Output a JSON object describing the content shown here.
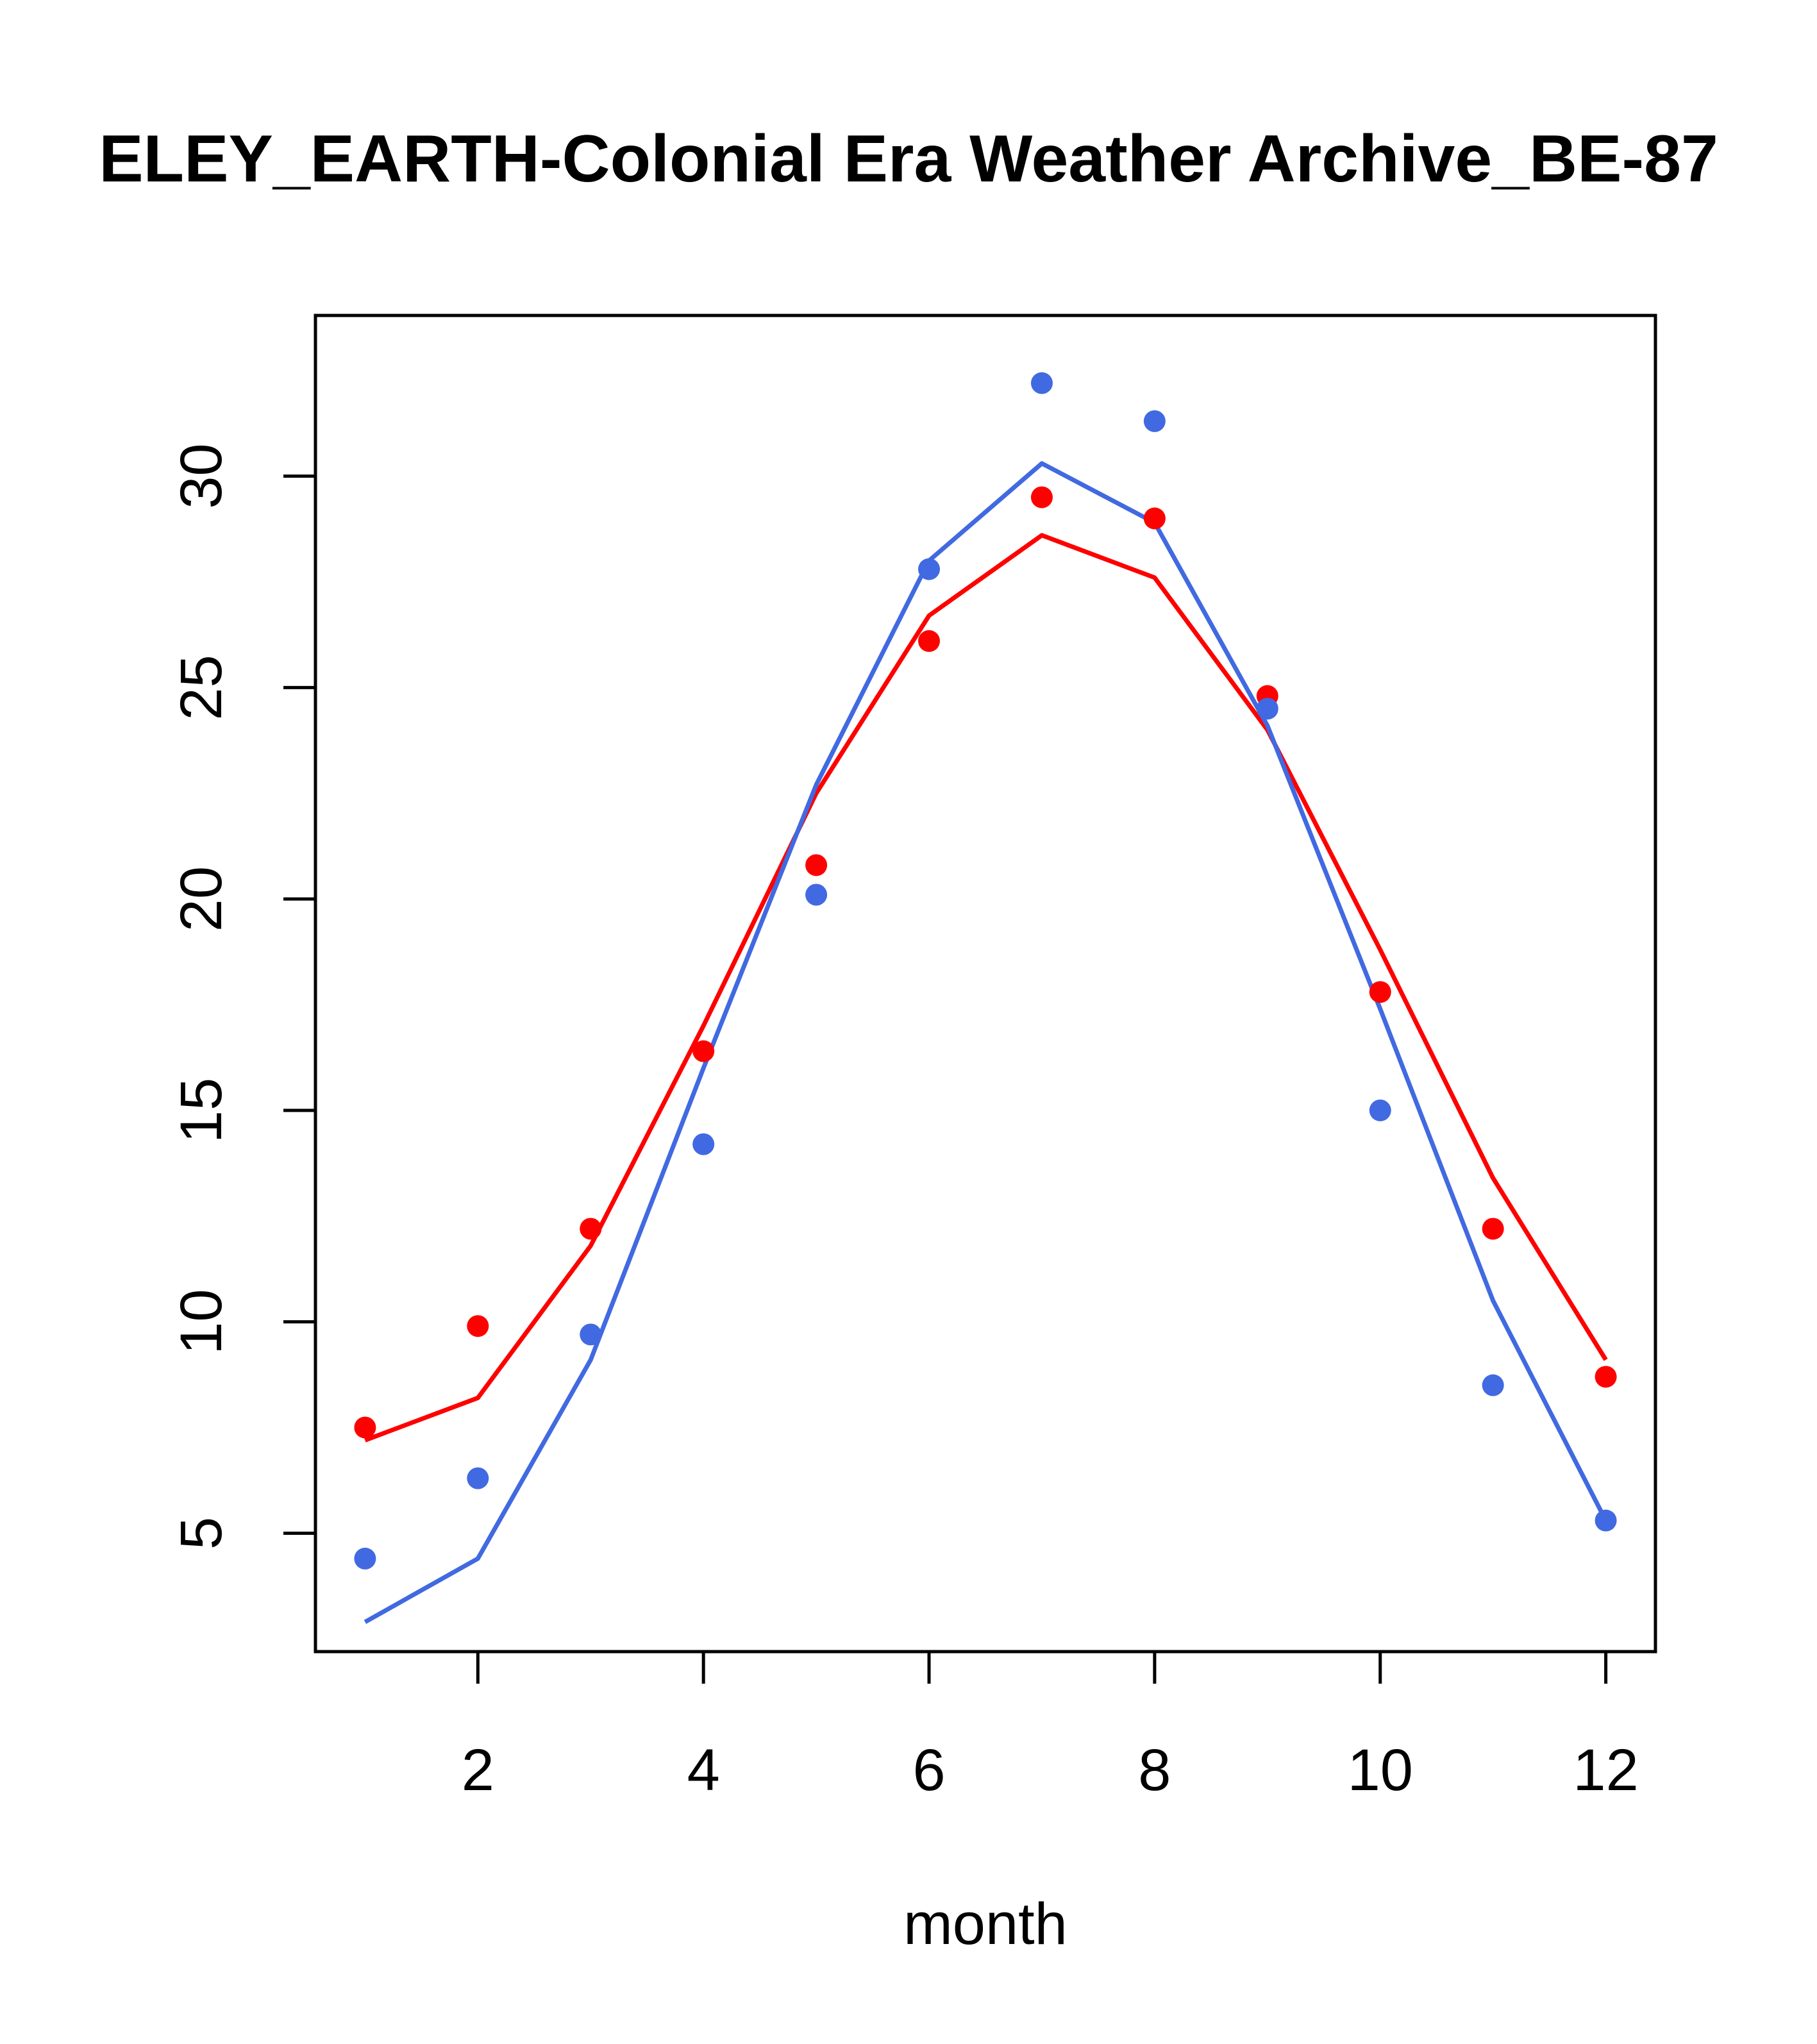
{
  "chart_data": {
    "type": "line",
    "title": "ELEY_EARTH-Colonial Era Weather Archive_BE-87",
    "xlabel": "month",
    "ylabel": "",
    "xlim": [
      0.56,
      12.44
    ],
    "ylim": [
      2.2,
      33.8
    ],
    "xticks": [
      2,
      4,
      6,
      8,
      10,
      12
    ],
    "yticks": [
      5,
      10,
      15,
      20,
      25,
      30
    ],
    "grid": false,
    "colors": {
      "red": "#ff0000",
      "blue": "#4169e1"
    },
    "points": [
      {
        "color": "red",
        "x": [
          1,
          2,
          3,
          4,
          5,
          6,
          7,
          8,
          9,
          10,
          11,
          12
        ],
        "y": [
          7.5,
          9.9,
          12.2,
          16.4,
          20.8,
          26.1,
          29.5,
          29.0,
          24.8,
          17.8,
          12.2,
          8.7
        ]
      },
      {
        "color": "blue",
        "x": [
          1,
          2,
          3,
          4,
          5,
          6,
          7,
          8,
          9,
          10,
          11,
          12
        ],
        "y": [
          4.4,
          6.3,
          9.7,
          14.2,
          20.1,
          27.8,
          32.2,
          31.3,
          24.5,
          15.0,
          8.5,
          5.3
        ]
      }
    ],
    "lines": [
      {
        "color": "red",
        "x": [
          1,
          2,
          3,
          4,
          5,
          6,
          7,
          8,
          9,
          10,
          11,
          12
        ],
        "y": [
          7.2,
          8.2,
          11.8,
          17.0,
          22.5,
          26.7,
          28.6,
          27.6,
          24.0,
          18.8,
          13.4,
          9.1
        ]
      },
      {
        "color": "blue",
        "x": [
          1,
          2,
          3,
          4,
          5,
          6,
          7,
          8,
          9,
          10,
          11,
          12
        ],
        "y": [
          2.9,
          4.4,
          9.1,
          16.0,
          22.7,
          28.0,
          30.3,
          28.9,
          24.1,
          17.4,
          10.5,
          5.3
        ]
      }
    ]
  }
}
